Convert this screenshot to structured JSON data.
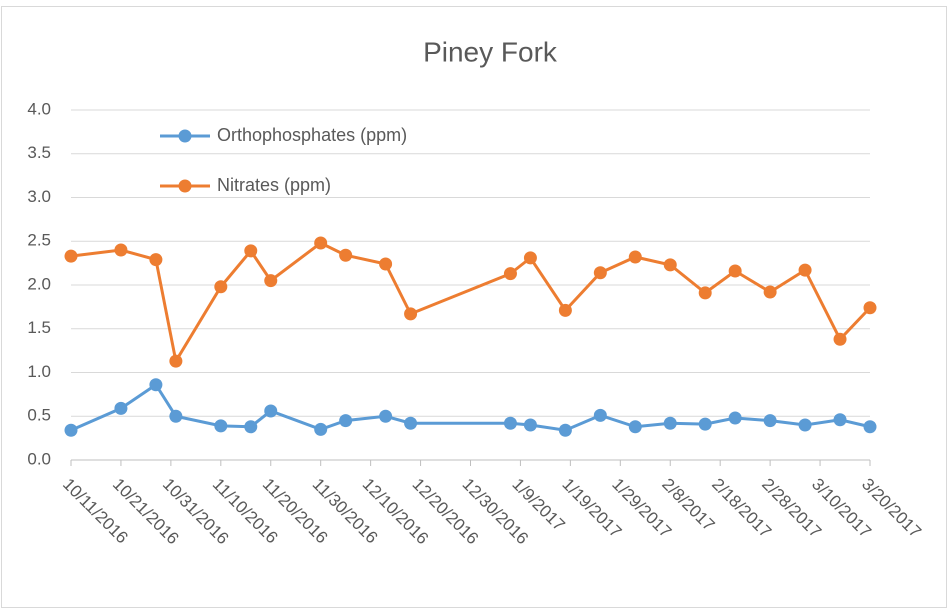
{
  "chart_data": {
    "type": "line",
    "title": "Piney Fork",
    "x": [
      "10/11/2016",
      "10/21/2016",
      "10/28/2016",
      "11/1/2016",
      "11/10/2016",
      "11/16/2016",
      "11/20/2016",
      "11/30/2016",
      "12/5/2016",
      "12/13/2016",
      "12/18/2016",
      "1/7/2017",
      "1/11/2017",
      "1/18/2017",
      "1/25/2017",
      "2/1/2017",
      "2/8/2017",
      "2/15/2017",
      "2/21/2017",
      "2/28/2017",
      "3/7/2017",
      "3/14/2017",
      "3/20/2017"
    ],
    "series": [
      {
        "name": "Orthophosphates (ppm)",
        "color": "#5b9bd5",
        "values": [
          0.34,
          0.59,
          0.86,
          0.5,
          0.39,
          0.38,
          0.56,
          0.35,
          0.45,
          0.5,
          0.42,
          0.42,
          0.4,
          0.34,
          0.51,
          0.38,
          0.42,
          0.41,
          0.48,
          0.45,
          0.4,
          0.46,
          0.38
        ]
      },
      {
        "name": "Nitrates (ppm)",
        "color": "#ed7d31",
        "values": [
          2.33,
          2.4,
          2.29,
          1.13,
          1.98,
          2.39,
          2.05,
          2.48,
          2.34,
          2.24,
          1.67,
          2.13,
          2.31,
          1.71,
          2.14,
          2.32,
          2.23,
          1.91,
          2.16,
          1.92,
          2.17,
          1.38,
          1.74
        ]
      }
    ],
    "xlim": [
      "10/11/2016",
      "3/20/2017"
    ],
    "xticks": [
      "10/11/2016",
      "10/21/2016",
      "10/31/2016",
      "11/10/2016",
      "11/20/2016",
      "11/30/2016",
      "12/10/2016",
      "12/20/2016",
      "12/30/2016",
      "1/9/2017",
      "1/19/2017",
      "1/29/2017",
      "2/8/2017",
      "2/18/2017",
      "2/28/2017",
      "3/10/2017",
      "3/20/2017"
    ],
    "ylim": [
      0,
      4
    ],
    "yticks": [
      {
        "value": 0,
        "label": "0.0"
      },
      {
        "value": 0.5,
        "label": "0.5"
      },
      {
        "value": 1,
        "label": "1.0"
      },
      {
        "value": 1.5,
        "label": "1.5"
      },
      {
        "value": 2,
        "label": "2.0"
      },
      {
        "value": 2.5,
        "label": "2.5"
      },
      {
        "value": 3,
        "label": "3.0"
      },
      {
        "value": 3.5,
        "label": "3.5"
      },
      {
        "value": 4,
        "label": "4.0"
      }
    ],
    "grid": true,
    "legend": "top-left"
  }
}
